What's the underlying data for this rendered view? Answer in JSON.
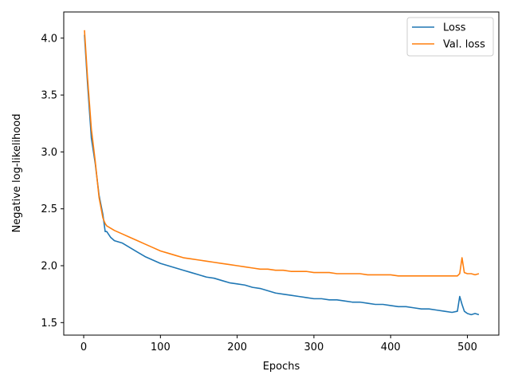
{
  "chart_data": {
    "type": "line",
    "title": "",
    "xlabel": "Epochs",
    "ylabel": "Negative log-likelihood",
    "xlim": [
      -26,
      541
    ],
    "ylim": [
      1.39,
      4.23
    ],
    "xticks": [
      0,
      100,
      200,
      300,
      400,
      500
    ],
    "yticks": [
      1.5,
      2.0,
      2.5,
      3.0,
      3.5,
      4.0
    ],
    "xtick_labels": [
      "0",
      "100",
      "200",
      "300",
      "400",
      "500"
    ],
    "ytick_labels": [
      "1.5",
      "2.0",
      "2.5",
      "3.0",
      "3.5",
      "4.0"
    ],
    "grid": false,
    "legend_position": "top-right",
    "series": [
      {
        "name": "Loss",
        "color": "#1f77b4",
        "x": [
          1,
          5,
          10,
          15,
          20,
          25,
          28,
          30,
          35,
          40,
          50,
          60,
          70,
          80,
          90,
          100,
          110,
          120,
          130,
          140,
          150,
          160,
          170,
          180,
          190,
          200,
          210,
          220,
          230,
          240,
          250,
          260,
          270,
          280,
          290,
          300,
          310,
          320,
          330,
          340,
          350,
          360,
          370,
          380,
          390,
          400,
          410,
          420,
          430,
          440,
          450,
          460,
          470,
          480,
          487,
          490,
          493,
          496,
          500,
          505,
          510,
          515
        ],
        "y": [
          4.03,
          3.6,
          3.12,
          2.9,
          2.62,
          2.45,
          2.3,
          2.3,
          2.25,
          2.22,
          2.2,
          2.16,
          2.12,
          2.08,
          2.05,
          2.02,
          2.0,
          1.98,
          1.96,
          1.94,
          1.92,
          1.9,
          1.89,
          1.87,
          1.85,
          1.84,
          1.83,
          1.81,
          1.8,
          1.78,
          1.76,
          1.75,
          1.74,
          1.73,
          1.72,
          1.71,
          1.71,
          1.7,
          1.7,
          1.69,
          1.68,
          1.68,
          1.67,
          1.66,
          1.66,
          1.65,
          1.64,
          1.64,
          1.63,
          1.62,
          1.62,
          1.61,
          1.6,
          1.59,
          1.6,
          1.73,
          1.66,
          1.6,
          1.58,
          1.57,
          1.58,
          1.57
        ]
      },
      {
        "name": "Val. loss",
        "color": "#ff7f0e",
        "x": [
          1,
          5,
          10,
          15,
          20,
          25,
          28,
          30,
          35,
          40,
          50,
          60,
          70,
          80,
          90,
          100,
          110,
          120,
          130,
          140,
          150,
          160,
          170,
          180,
          190,
          200,
          210,
          220,
          230,
          240,
          250,
          260,
          270,
          280,
          290,
          300,
          310,
          320,
          330,
          340,
          350,
          360,
          370,
          380,
          390,
          400,
          410,
          420,
          430,
          440,
          450,
          460,
          470,
          480,
          487,
          490,
          493,
          496,
          500,
          505,
          510,
          515
        ],
        "y": [
          4.07,
          3.65,
          3.2,
          2.92,
          2.6,
          2.42,
          2.37,
          2.35,
          2.33,
          2.31,
          2.28,
          2.25,
          2.22,
          2.19,
          2.16,
          2.13,
          2.11,
          2.09,
          2.07,
          2.06,
          2.05,
          2.04,
          2.03,
          2.02,
          2.01,
          2.0,
          1.99,
          1.98,
          1.97,
          1.97,
          1.96,
          1.96,
          1.95,
          1.95,
          1.95,
          1.94,
          1.94,
          1.94,
          1.93,
          1.93,
          1.93,
          1.93,
          1.92,
          1.92,
          1.92,
          1.92,
          1.91,
          1.91,
          1.91,
          1.91,
          1.91,
          1.91,
          1.91,
          1.91,
          1.91,
          1.93,
          2.07,
          1.94,
          1.93,
          1.93,
          1.92,
          1.93
        ]
      }
    ]
  }
}
